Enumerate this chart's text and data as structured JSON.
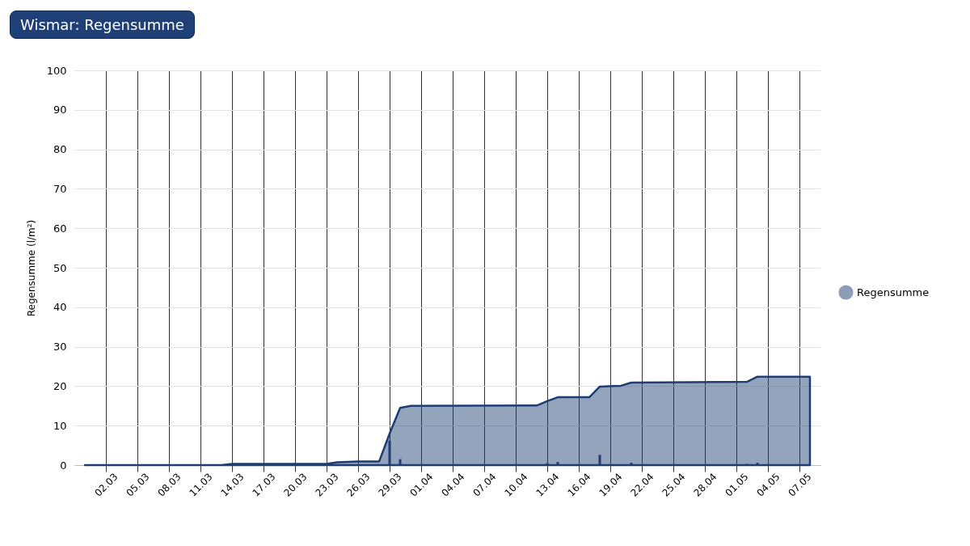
{
  "chart_data": {
    "type": "area",
    "title": "Wismar: Regensumme",
    "ylabel": "Regensumme (l/m²)",
    "xlim": [
      "--02-27",
      "--05-09"
    ],
    "xticks": [
      {
        "value": "--03-02",
        "label": "02.03"
      },
      {
        "value": "--03-05",
        "label": "05.03"
      },
      {
        "value": "--03-08",
        "label": "08.03"
      },
      {
        "value": "--03-11",
        "label": "11.03"
      },
      {
        "value": "--03-14",
        "label": "14.03"
      },
      {
        "value": "--03-17",
        "label": "17.03"
      },
      {
        "value": "--03-20",
        "label": "20.03"
      },
      {
        "value": "--03-23",
        "label": "23.03"
      },
      {
        "value": "--03-26",
        "label": "26.03"
      },
      {
        "value": "--03-29",
        "label": "29.03"
      },
      {
        "value": "--04-01",
        "label": "01.04"
      },
      {
        "value": "--04-04",
        "label": "04.04"
      },
      {
        "value": "--04-07",
        "label": "07.04"
      },
      {
        "value": "--04-10",
        "label": "10.04"
      },
      {
        "value": "--04-13",
        "label": "13.04"
      },
      {
        "value": "--04-16",
        "label": "16.04"
      },
      {
        "value": "--04-19",
        "label": "19.04"
      },
      {
        "value": "--04-22",
        "label": "22.04"
      },
      {
        "value": "--04-25",
        "label": "25.04"
      },
      {
        "value": "--04-28",
        "label": "28.04"
      },
      {
        "value": "--05-01",
        "label": "01.05"
      },
      {
        "value": "--05-04",
        "label": "04.05"
      },
      {
        "value": "--05-07",
        "label": "07.05"
      }
    ],
    "ylim": [
      0,
      100
    ],
    "yticks": [
      0,
      10,
      20,
      30,
      40,
      50,
      60,
      70,
      80,
      90,
      100
    ],
    "grid": true,
    "legend": "right",
    "series": [
      {
        "name": "Regensumme",
        "color": "#1e3d73",
        "x": [
          "--02-28",
          "--03-13",
          "--03-14",
          "--03-23",
          "--03-24",
          "--03-26",
          "--03-28",
          "--03-29",
          "--03-30",
          "--03-31",
          "--04-12",
          "--04-13",
          "--04-14",
          "--04-17",
          "--04-18",
          "--04-20",
          "--04-21",
          "--05-02",
          "--05-03",
          "--05-08"
        ],
        "values": [
          0,
          0,
          0.3,
          0.3,
          0.7,
          0.9,
          0.9,
          8,
          14.5,
          15,
          15.1,
          16.2,
          17.2,
          17.2,
          19.9,
          20.1,
          20.9,
          21.1,
          22.4,
          22.4
        ]
      },
      {
        "type": "bar",
        "color": "#1e3d73",
        "x": [
          "--03-29",
          "--03-30",
          "--04-13",
          "--04-14",
          "--04-18",
          "--04-21",
          "--05-02",
          "--05-03"
        ],
        "values": [
          6.2,
          1.5,
          0.5,
          0.8,
          2.6,
          0.6,
          0.3,
          0.6
        ]
      }
    ]
  }
}
